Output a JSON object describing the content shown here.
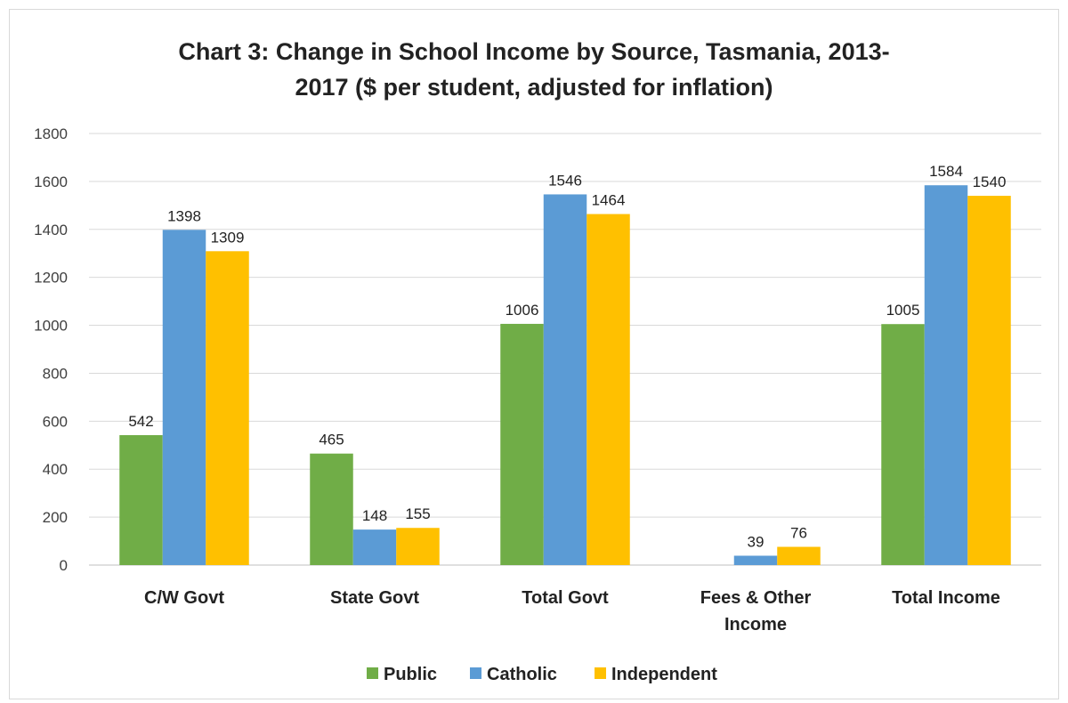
{
  "chart_data": {
    "type": "bar",
    "title_lines": [
      "Chart 3: Change in School Income by Source, Tasmania, 2013-",
      "2017 ($ per student, adjusted for inflation)"
    ],
    "categories": [
      [
        "C/W Govt"
      ],
      [
        "State Govt"
      ],
      [
        "Total Govt"
      ],
      [
        "Fees & Other",
        "Income"
      ],
      [
        "Total Income"
      ]
    ],
    "series": [
      {
        "name": "Public",
        "color": "#70ad47",
        "values": [
          542,
          465,
          1006,
          null,
          1005
        ]
      },
      {
        "name": "Catholic",
        "color": "#5b9bd5",
        "values": [
          1398,
          148,
          1546,
          39,
          1584
        ]
      },
      {
        "name": "Independent",
        "color": "#ffc000",
        "values": [
          1309,
          155,
          1464,
          76,
          1540
        ]
      }
    ],
    "ylim": [
      0,
      1800
    ],
    "yticks": [
      "0",
      "200",
      "400",
      "600",
      "800",
      "1000",
      "1200",
      "1400",
      "1600",
      "1800"
    ],
    "grid": true,
    "legend_position": "bottom"
  }
}
